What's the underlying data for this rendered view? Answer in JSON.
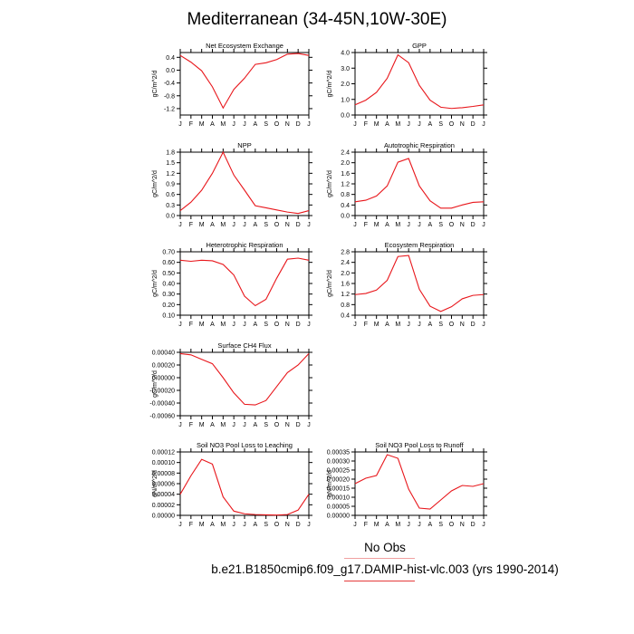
{
  "title": "Mediterranean (34-45N,10W-30E)",
  "months": [
    "J",
    "F",
    "M",
    "A",
    "M",
    "J",
    "J",
    "A",
    "S",
    "O",
    "N",
    "D",
    "J"
  ],
  "colors": {
    "series": "#e8161b",
    "axis": "#000000"
  },
  "legend": {
    "obs_label": "No Obs",
    "model_label": "b.e21.B1850cmip6.f09_g17.DAMIP-hist-vlc.003 (yrs 1990-2014)"
  },
  "chart_data": [
    {
      "type": "line",
      "title": "Net Ecosystem Exchange",
      "ylabel": "gC/m^2/d",
      "ylim": [
        -1.4,
        0.55
      ],
      "yticks": [
        0.4,
        0.0,
        -0.4,
        -0.8,
        -1.2
      ],
      "yticklabels": [
        "0.4",
        "0.0",
        "-0.4",
        "-0.8",
        "-1.2"
      ],
      "x": [
        "J",
        "F",
        "M",
        "A",
        "M",
        "J",
        "J",
        "A",
        "S",
        "O",
        "N",
        "D",
        "J"
      ],
      "values": [
        0.46,
        0.25,
        -0.02,
        -0.52,
        -1.18,
        -0.6,
        -0.25,
        0.18,
        0.23,
        0.33,
        0.5,
        0.52,
        0.46
      ]
    },
    {
      "type": "line",
      "title": "GPP",
      "ylabel": "gC/m^2/d",
      "ylim": [
        0.0,
        4.0
      ],
      "yticks": [
        0.0,
        1.0,
        2.0,
        3.0,
        4.0
      ],
      "yticklabels": [
        "0.0",
        "1.0",
        "2.0",
        "3.0",
        "4.0"
      ],
      "x": [
        "J",
        "F",
        "M",
        "A",
        "M",
        "J",
        "J",
        "A",
        "S",
        "O",
        "N",
        "D",
        "J"
      ],
      "values": [
        0.65,
        0.95,
        1.45,
        2.35,
        3.85,
        3.35,
        1.9,
        0.95,
        0.5,
        0.42,
        0.47,
        0.55,
        0.65
      ]
    },
    {
      "type": "line",
      "title": "NPP",
      "ylabel": "gC/m^2/d",
      "ylim": [
        0.0,
        1.8
      ],
      "yticks": [
        0.0,
        0.3,
        0.6,
        0.9,
        1.2,
        1.5,
        1.8
      ],
      "yticklabels": [
        "0.0",
        "0.3",
        "0.6",
        "0.9",
        "1.2",
        "1.5",
        "1.8"
      ],
      "x": [
        "J",
        "F",
        "M",
        "A",
        "M",
        "J",
        "J",
        "A",
        "S",
        "O",
        "N",
        "D",
        "J"
      ],
      "values": [
        0.14,
        0.38,
        0.72,
        1.2,
        1.8,
        1.15,
        0.72,
        0.28,
        0.22,
        0.16,
        0.1,
        0.06,
        0.14
      ]
    },
    {
      "type": "line",
      "title": "Autotrophic Respiration",
      "ylabel": "gC/m^2/d",
      "ylim": [
        0.0,
        2.4
      ],
      "yticks": [
        0.0,
        0.4,
        0.8,
        1.2,
        1.6,
        2.0,
        2.4
      ],
      "yticklabels": [
        "0.0",
        "0.4",
        "0.8",
        "1.2",
        "1.6",
        "2.0",
        "2.4"
      ],
      "x": [
        "J",
        "F",
        "M",
        "A",
        "M",
        "J",
        "J",
        "A",
        "S",
        "O",
        "N",
        "D",
        "J"
      ],
      "values": [
        0.52,
        0.58,
        0.74,
        1.12,
        2.02,
        2.16,
        1.12,
        0.56,
        0.28,
        0.28,
        0.4,
        0.5,
        0.52
      ]
    },
    {
      "type": "line",
      "title": "Heterotrophic Respiration",
      "ylabel": "gC/m^2/d",
      "ylim": [
        0.1,
        0.7
      ],
      "yticks": [
        0.1,
        0.2,
        0.3,
        0.4,
        0.5,
        0.6,
        0.7
      ],
      "yticklabels": [
        "0.10",
        "0.20",
        "0.30",
        "0.40",
        "0.50",
        "0.60",
        "0.70"
      ],
      "x": [
        "J",
        "F",
        "M",
        "A",
        "M",
        "J",
        "J",
        "A",
        "S",
        "O",
        "N",
        "D",
        "J"
      ],
      "values": [
        0.62,
        0.61,
        0.62,
        0.615,
        0.58,
        0.48,
        0.28,
        0.19,
        0.25,
        0.45,
        0.63,
        0.64,
        0.62
      ]
    },
    {
      "type": "line",
      "title": "Ecosystem Respiration",
      "ylabel": "gC/m^2/d",
      "ylim": [
        0.4,
        2.8
      ],
      "yticks": [
        0.4,
        0.8,
        1.2,
        1.6,
        2.0,
        2.4,
        2.8
      ],
      "yticklabels": [
        "0.4",
        "0.8",
        "1.2",
        "1.6",
        "2.0",
        "2.4",
        "2.8"
      ],
      "x": [
        "J",
        "F",
        "M",
        "A",
        "M",
        "J",
        "J",
        "A",
        "S",
        "O",
        "N",
        "D",
        "J"
      ],
      "values": [
        1.18,
        1.22,
        1.35,
        1.72,
        2.62,
        2.66,
        1.38,
        0.74,
        0.54,
        0.72,
        1.02,
        1.15,
        1.18
      ]
    },
    {
      "type": "line",
      "title": "Surface CH4 Flux",
      "ylabel": "gC/m^2/d",
      "ylim": [
        -0.0006,
        0.0004
      ],
      "yticks": [
        0.0004,
        0.0002,
        0.0,
        -0.0002,
        -0.0004,
        -0.0006
      ],
      "yticklabels": [
        "0.00040",
        "0.00020",
        "0.00000",
        "-0.00020",
        "-0.00040",
        "-0.00060"
      ],
      "x": [
        "J",
        "F",
        "M",
        "A",
        "M",
        "J",
        "J",
        "A",
        "S",
        "O",
        "N",
        "D",
        "J"
      ],
      "values": [
        0.00038,
        0.00036,
        0.00029,
        0.00022,
        0.0,
        -0.00024,
        -0.00042,
        -0.00043,
        -0.00036,
        -0.00014,
        8e-05,
        0.0002,
        0.00038
      ]
    },
    {
      "type": "line",
      "title": "Soil NO3 Pool Loss to Leaching",
      "ylabel": "gN/m^2/d",
      "ylim": [
        0.0,
        0.00012
      ],
      "yticks": [
        0.0,
        2e-05,
        4e-05,
        6e-05,
        8e-05,
        0.0001,
        0.00012
      ],
      "yticklabels": [
        "0.00000",
        "0.00002",
        "0.00004",
        "0.00006",
        "0.00008",
        "0.00010",
        "0.00012"
      ],
      "x": [
        "J",
        "F",
        "M",
        "A",
        "M",
        "J",
        "J",
        "A",
        "S",
        "O",
        "N",
        "D",
        "J"
      ],
      "values": [
        4e-05,
        7.5e-05,
        0.000106,
        9.7e-05,
        3.5e-05,
        8e-06,
        3e-06,
        1.5e-06,
        1e-06,
        5e-07,
        1.5e-06,
        1e-05,
        4e-05
      ]
    },
    {
      "type": "line",
      "title": "Soil NO3 Pool Loss to Runoff",
      "ylabel": "gN/m^2/d",
      "ylim": [
        0.0,
        0.00035
      ],
      "yticks": [
        0.0,
        5e-05,
        0.0001,
        0.00015,
        0.0002,
        0.00025,
        0.0003,
        0.00035
      ],
      "yticklabels": [
        "0.00000",
        "0.00005",
        "0.00010",
        "0.00015",
        "0.00020",
        "0.00025",
        "0.00030",
        "0.00035"
      ],
      "x": [
        "J",
        "F",
        "M",
        "A",
        "M",
        "J",
        "J",
        "A",
        "S",
        "O",
        "N",
        "D",
        "J"
      ],
      "values": [
        0.000175,
        0.000205,
        0.00022,
        0.000335,
        0.000315,
        0.000145,
        4e-05,
        3.5e-05,
        8.5e-05,
        0.000135,
        0.000165,
        0.00016,
        0.000175
      ]
    }
  ]
}
